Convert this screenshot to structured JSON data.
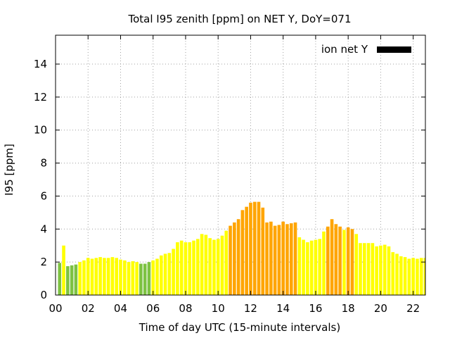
{
  "chart_data": {
    "type": "bar",
    "title": "Total I95 zenith [ppm] on NET Y, DoY=071",
    "xlabel": "Time of day UTC (15-minute intervals)",
    "ylabel": "I95 [ppm]",
    "xlim": [
      0,
      22.75
    ],
    "ylim": [
      0,
      15.75
    ],
    "x_ticks": [
      "00",
      "02",
      "04",
      "06",
      "08",
      "10",
      "12",
      "14",
      "16",
      "18",
      "20",
      "22"
    ],
    "y_ticks": [
      "0",
      "2",
      "4",
      "6",
      "8",
      "10",
      "12",
      "14"
    ],
    "grid": true,
    "legend": {
      "label": "ion net Y",
      "position": "top-right",
      "color": "#000000"
    },
    "bar_width_hours": 0.2,
    "color_classes": {
      "low": "#7dc242",
      "mid": "#ffff00",
      "high": "#ffa500"
    },
    "series": [
      {
        "x": [
          0.25,
          0.5,
          0.75,
          1.0,
          1.25,
          1.5,
          1.75,
          2.0,
          2.25,
          2.5,
          2.75,
          3.0,
          3.25,
          3.5,
          3.75,
          4.0,
          4.25,
          4.5,
          4.75,
          5.0,
          5.25,
          5.5,
          5.75,
          6.0,
          6.25,
          6.5,
          6.75,
          7.0,
          7.25,
          7.5,
          7.75,
          8.0,
          8.25,
          8.5,
          8.75,
          9.0,
          9.25,
          9.5,
          9.75,
          10.0,
          10.25,
          10.5,
          10.75,
          11.0,
          11.25,
          11.5,
          11.75,
          12.0,
          12.25,
          12.5,
          12.75,
          13.0,
          13.25,
          13.5,
          13.75,
          14.0,
          14.25,
          14.5,
          14.75,
          15.0,
          15.25,
          15.5,
          15.75,
          16.0,
          16.25,
          16.5,
          16.75,
          17.0,
          17.25,
          17.5,
          17.75,
          18.0,
          18.25,
          18.5,
          18.75,
          19.0,
          19.25,
          19.5,
          19.75,
          20.0,
          20.25,
          20.5,
          20.75,
          21.0,
          21.25,
          21.5,
          21.75,
          22.0,
          22.25,
          22.5,
          22.75
        ],
        "values": [
          1.95,
          3.0,
          1.75,
          1.8,
          1.85,
          2.0,
          2.1,
          2.25,
          2.2,
          2.25,
          2.3,
          2.25,
          2.25,
          2.3,
          2.25,
          2.15,
          2.1,
          2.0,
          2.05,
          2.0,
          1.9,
          1.9,
          2.0,
          2.1,
          2.2,
          2.4,
          2.5,
          2.55,
          2.8,
          3.2,
          3.3,
          3.2,
          3.2,
          3.3,
          3.4,
          3.7,
          3.65,
          3.45,
          3.35,
          3.4,
          3.6,
          3.9,
          4.2,
          4.4,
          4.6,
          5.15,
          5.35,
          5.6,
          5.65,
          5.65,
          5.3,
          4.4,
          4.45,
          4.2,
          4.25,
          4.45,
          4.3,
          4.35,
          4.4,
          3.5,
          3.35,
          3.2,
          3.3,
          3.35,
          3.4,
          3.85,
          4.15,
          4.6,
          4.3,
          4.15,
          3.95,
          4.1,
          4.0,
          3.7,
          3.15,
          3.15,
          3.15,
          3.15,
          2.95,
          3.0,
          3.05,
          2.95,
          2.6,
          2.5,
          2.35,
          2.3,
          2.2,
          2.25,
          2.2,
          2.25,
          2.25
        ],
        "colors": [
          "low",
          "mid",
          "low",
          "low",
          "low",
          "mid",
          "mid",
          "mid",
          "mid",
          "mid",
          "mid",
          "mid",
          "mid",
          "mid",
          "mid",
          "mid",
          "mid",
          "mid",
          "mid",
          "mid",
          "low",
          "low",
          "low",
          "mid",
          "mid",
          "mid",
          "mid",
          "mid",
          "mid",
          "mid",
          "mid",
          "mid",
          "mid",
          "mid",
          "mid",
          "mid",
          "mid",
          "mid",
          "mid",
          "mid",
          "mid",
          "mid",
          "high",
          "high",
          "high",
          "high",
          "high",
          "high",
          "high",
          "high",
          "high",
          "high",
          "high",
          "high",
          "high",
          "high",
          "high",
          "high",
          "high",
          "mid",
          "mid",
          "mid",
          "mid",
          "mid",
          "mid",
          "mid",
          "high",
          "high",
          "high",
          "high",
          "mid",
          "high",
          "high",
          "mid",
          "mid",
          "mid",
          "mid",
          "mid",
          "mid",
          "mid",
          "mid",
          "mid",
          "mid",
          "mid",
          "mid",
          "mid",
          "mid",
          "mid",
          "mid",
          "mid",
          "mid"
        ]
      }
    ]
  }
}
